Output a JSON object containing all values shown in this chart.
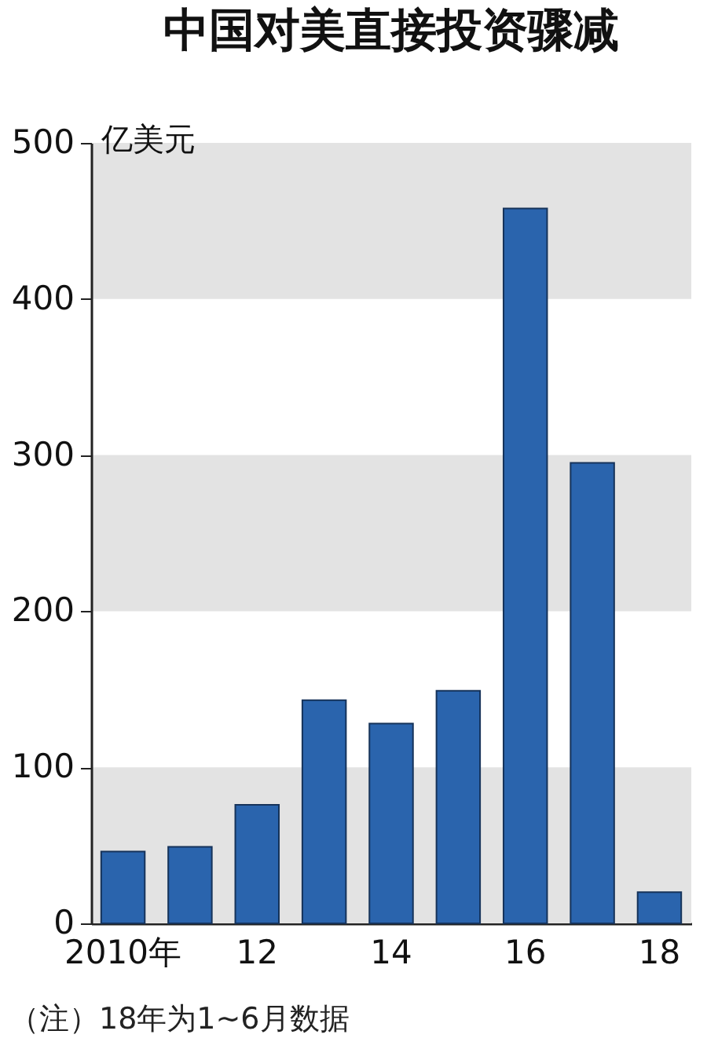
{
  "chart_data": {
    "type": "bar",
    "title": "中国对美直接投资骤减",
    "ylabel": "亿美元",
    "categories": [
      "2010年",
      null,
      "12",
      null,
      "14",
      null,
      "16",
      null,
      "18"
    ],
    "values": [
      46,
      49,
      76,
      143,
      128,
      149,
      458,
      295,
      20
    ],
    "color": "#2a64ad",
    "ylim": [
      0,
      500
    ],
    "yticks": [
      0,
      100,
      200,
      300,
      400,
      500
    ],
    "bands": [
      {
        "axis": "y",
        "from": 0,
        "to": 100,
        "color": "#e3e3e3"
      },
      {
        "axis": "y",
        "from": 200,
        "to": 300,
        "color": "#e3e3e3"
      },
      {
        "axis": "y",
        "from": 400,
        "to": 500,
        "color": "#e3e3e3"
      }
    ],
    "annotations": [
      "（注）18年为1~6月数据"
    ]
  }
}
